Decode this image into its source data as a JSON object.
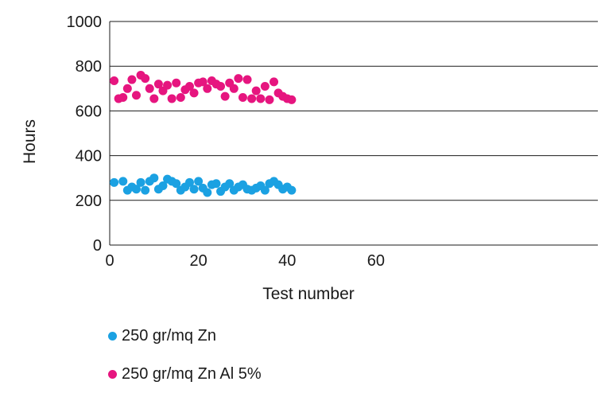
{
  "chart_data": {
    "type": "scatter",
    "title": "",
    "xlabel": "Test number",
    "ylabel": "Hours",
    "xlim": [
      0,
      110
    ],
    "ylim": [
      0,
      1000
    ],
    "x_ticks": [
      0,
      20,
      40,
      60
    ],
    "y_ticks": [
      0,
      200,
      400,
      600,
      800,
      1000
    ],
    "grid": "horizontal",
    "legend_position": "bottom",
    "series": [
      {
        "name": "250 gr/mq Zn",
        "color": "#1ba1e2",
        "x": [
          1,
          3,
          4,
          5,
          6,
          7,
          8,
          9,
          10,
          11,
          12,
          13,
          14,
          15,
          16,
          17,
          18,
          19,
          20,
          21,
          22,
          23,
          24,
          25,
          26,
          27,
          28,
          29,
          30,
          31,
          32,
          33,
          34,
          35,
          36,
          37,
          38,
          39,
          40,
          41
        ],
        "y": [
          280,
          285,
          245,
          260,
          250,
          280,
          245,
          285,
          300,
          250,
          265,
          295,
          285,
          275,
          245,
          260,
          280,
          250,
          285,
          255,
          235,
          270,
          275,
          240,
          260,
          275,
          245,
          260,
          270,
          250,
          245,
          255,
          265,
          245,
          275,
          285,
          270,
          250,
          260,
          245
        ]
      },
      {
        "name": "250 gr/mq Zn Al 5%",
        "color": "#e6157f",
        "x": [
          1,
          2,
          3,
          4,
          5,
          6,
          7,
          8,
          9,
          10,
          11,
          12,
          13,
          14,
          15,
          16,
          17,
          18,
          19,
          20,
          21,
          22,
          23,
          24,
          25,
          26,
          27,
          28,
          29,
          30,
          31,
          32,
          33,
          34,
          35,
          36,
          37,
          38,
          39,
          40,
          41
        ],
        "y": [
          735,
          655,
          660,
          700,
          740,
          670,
          760,
          745,
          700,
          655,
          720,
          690,
          715,
          655,
          725,
          660,
          695,
          710,
          680,
          725,
          730,
          700,
          735,
          720,
          710,
          665,
          725,
          700,
          745,
          660,
          740,
          655,
          690,
          655,
          710,
          650,
          730,
          680,
          665,
          655,
          650
        ]
      }
    ]
  }
}
